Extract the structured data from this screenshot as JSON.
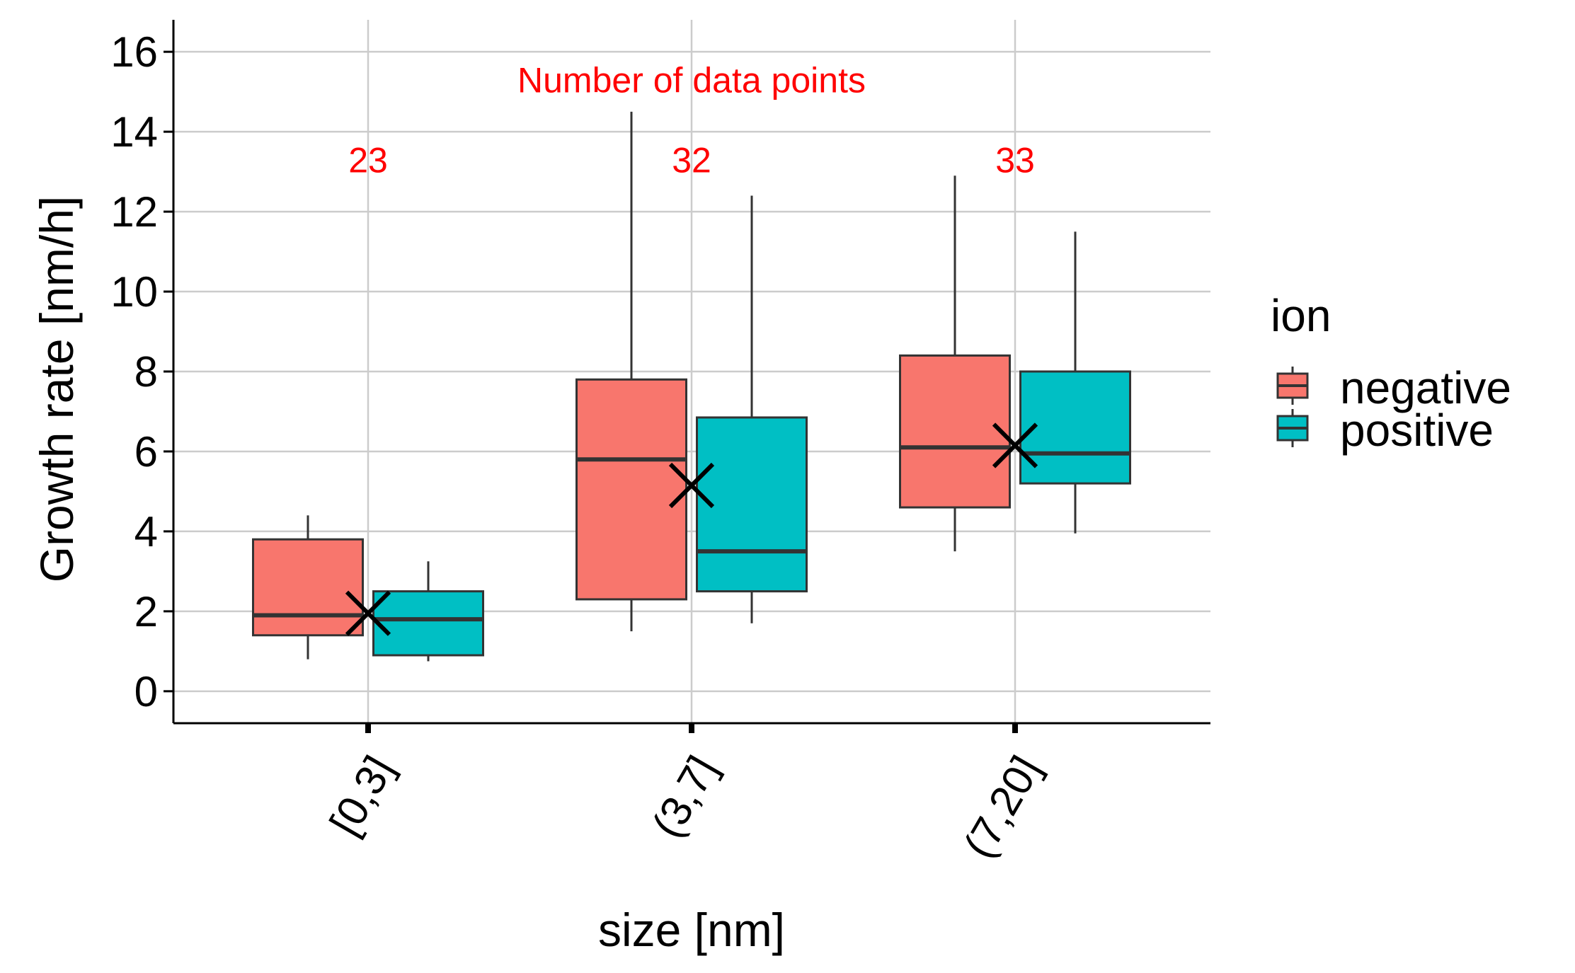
{
  "chart_data": {
    "type": "boxplot",
    "xlabel": "size [nm]",
    "ylabel": "Growth rate [nm/h]",
    "ylim": [
      -0.8,
      16.8
    ],
    "yticks": [
      0,
      2,
      4,
      6,
      8,
      10,
      12,
      14,
      16
    ],
    "grid": true,
    "categories": [
      "[0,3]",
      "(3,7]",
      "(7,20]"
    ],
    "legend": {
      "title": "ion",
      "position": "right",
      "items": [
        {
          "name": "negative",
          "color": "#F8766D"
        },
        {
          "name": "positive",
          "color": "#00BFC4"
        }
      ]
    },
    "series": [
      {
        "name": "negative",
        "color": "#F8766D",
        "boxes": [
          {
            "min": 0.8,
            "q1": 1.4,
            "median": 1.9,
            "q3": 3.8,
            "max": 4.4
          },
          {
            "min": 1.5,
            "q1": 2.3,
            "median": 5.8,
            "q3": 7.8,
            "max": 14.5
          },
          {
            "min": 3.5,
            "q1": 4.6,
            "median": 6.1,
            "q3": 8.4,
            "max": 12.9
          }
        ]
      },
      {
        "name": "positive",
        "color": "#00BFC4",
        "boxes": [
          {
            "min": 0.75,
            "q1": 0.9,
            "median": 1.8,
            "q3": 2.5,
            "max": 3.25
          },
          {
            "min": 1.7,
            "q1": 2.5,
            "median": 3.5,
            "q3": 6.85,
            "max": 12.4
          },
          {
            "min": 3.95,
            "q1": 5.2,
            "median": 5.95,
            "q3": 8.0,
            "max": 11.5
          }
        ]
      }
    ],
    "means": [
      1.95,
      5.15,
      6.15
    ],
    "annotations": {
      "title": "Number of data points",
      "counts": [
        "23",
        "32",
        "33"
      ],
      "title_y": 15.3,
      "count_y": 13.3,
      "color": "#ff0000"
    }
  }
}
